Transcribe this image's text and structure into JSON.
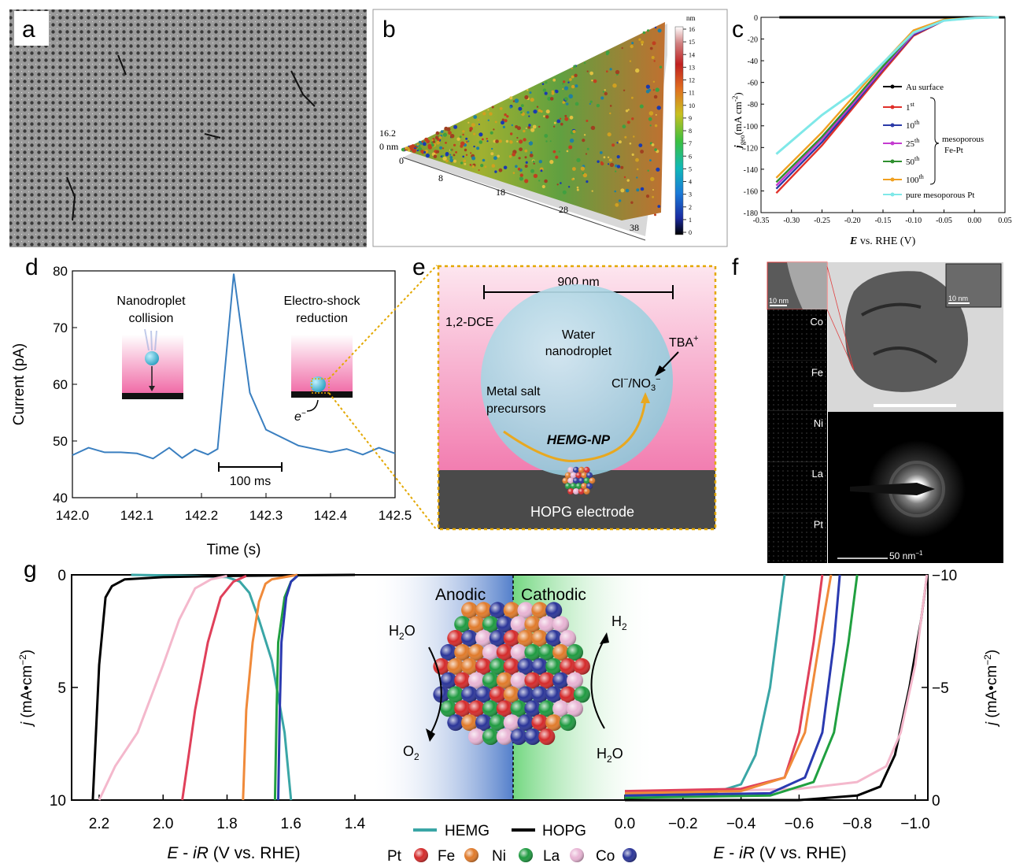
{
  "panels": {
    "a": "a",
    "b": "b",
    "c": "c",
    "d": "d",
    "e": "e",
    "f": "f",
    "g": "g"
  },
  "colors": {
    "au": "#000000",
    "c1": "#e0302a",
    "c10": "#2a3aa8",
    "c25": "#c43bd0",
    "c50": "#2e8f2e",
    "c100": "#f0a020",
    "pt": "#7fe8e8",
    "d_line": "#3a7fc0",
    "hemg": "#3aa6a6",
    "hopg": "#000000",
    "g_pink_light": "#f4b8cc",
    "g_red": "#e0405a",
    "g_orange": "#f08a3a",
    "g_green": "#20a040",
    "g_blue": "#2a3ab0",
    "atom_pt": "#d42a2a",
    "atom_fe": "#e07a2a",
    "atom_ni": "#1e9a40",
    "atom_la": "#e8b4d4",
    "atom_co": "#2a3498"
  },
  "panel_b": {
    "z_unit": "nm",
    "z_ticks": [
      "16",
      "15",
      "14",
      "13",
      "12",
      "11",
      "10",
      "9",
      "8",
      "7",
      "6",
      "5",
      "4",
      "3",
      "2",
      "1",
      "0"
    ],
    "height_top": "16.2",
    "height_zero": "0 nm",
    "axis_ticks": [
      "0",
      "8",
      "18",
      "28",
      "38"
    ]
  },
  "panel_c": {
    "ylabel_main": "j",
    "ylabel_sub": "geo",
    "ylabel_unit": "(mA cm",
    "ylabel_sup": "-2",
    "ylabel_close": ")",
    "xlabel_main": "E",
    "xlabel_rest": " vs. RHE (V)",
    "x_ticks": [
      "-0.35",
      "-0.30",
      "-0.25",
      "-0.20",
      "-0.15",
      "-0.10",
      "-0.05",
      "0.00",
      "0.05"
    ],
    "y_ticks": [
      "0",
      "-20",
      "-40",
      "-60",
      "-80",
      "-100",
      "-120",
      "-140",
      "-160",
      "-180"
    ],
    "legend": {
      "au": "Au surface",
      "s1": "1",
      "s1sup": "st",
      "s10": "10",
      "s10sup": "th",
      "s25": "25",
      "s25sup": "th",
      "s50": "50",
      "s50sup": "th",
      "s100": "100",
      "s100sup": "th",
      "group1": "mesoporous",
      "group2": "Fe-Pt",
      "pt": "pure mesoporous Pt"
    }
  },
  "panel_d": {
    "ylabel": "Current (pA)",
    "xlabel": "Time (s)",
    "x_ticks": [
      "142.0",
      "142.1",
      "142.2",
      "142.3",
      "142.4",
      "142.5"
    ],
    "y_ticks": [
      "80",
      "70",
      "60",
      "50",
      "40"
    ],
    "scalebar": "100 ms",
    "label1a": "Nanodroplet",
    "label1b": "collision",
    "label2a": "Electro-shock",
    "label2b": "reduction",
    "electron": "e",
    "electron_sup": "−"
  },
  "panel_e": {
    "scale": "900 nm",
    "solvent": "1,2-DCE",
    "droplet1": "Water",
    "droplet2": "nanodroplet",
    "tba": "TBA",
    "tba_sup": "+",
    "ions": "Cl",
    "ions_sup": "−",
    "ions2": "/NO",
    "ions2_sub": "3",
    "ions2_sup": "−",
    "precursor1": "Metal salt",
    "precursor2": "precursors",
    "np": "HEMG-NP",
    "electrode": "HOPG electrode"
  },
  "panel_f": {
    "inset_scale1": "10 nm",
    "inset_scale2": "10 nm",
    "elements": [
      "Co",
      "Fe",
      "Ni",
      "La",
      "Pt"
    ],
    "saed_scale": "50 nm",
    "saed_sup": "−1"
  },
  "panel_g": {
    "left_ylabel_j": "j",
    "left_ylabel_rest": " (mA•cm",
    "left_ylabel_sup": "−2",
    "left_ylabel_close": ")",
    "left_y_ticks": [
      "0",
      "5",
      "10"
    ],
    "right_y_ticks": [
      "−10",
      "−5",
      "0"
    ],
    "left_x_ticks": [
      "2.2",
      "2.0",
      "1.8",
      "1.6",
      "1.4"
    ],
    "right_x_ticks": [
      "0.0",
      "−0.2",
      "−0.4",
      "−0.6",
      "−0.8",
      "−1.0"
    ],
    "left_xlabel_e": "E",
    "left_xlabel_rest": " - ",
    "left_xlabel_ir": "iR",
    "left_xlabel_end": " (V vs. RHE)",
    "anodic": "Anodic",
    "cathodic": "Cathodic",
    "h2o_left": "H",
    "h2o_left_sub": "2",
    "h2o_left_o": "O",
    "o2": "O",
    "o2_sub": "2",
    "h2": "H",
    "h2_sub": "2",
    "h2o_right": "H",
    "h2o_right_sub": "2",
    "h2o_right_o": "O",
    "legend_hemg": "HEMG",
    "legend_hopg": "HOPG",
    "atoms": [
      "Pt",
      "Fe",
      "Ni",
      "La",
      "Co"
    ]
  },
  "chart_data": [
    {
      "panel": "c",
      "type": "line",
      "xlabel": "E vs. RHE (V)",
      "ylabel": "j_geo (mA cm^-2)",
      "xlim": [
        -0.35,
        0.05
      ],
      "ylim": [
        -180,
        0
      ],
      "series": [
        {
          "name": "Au surface",
          "x": [
            -0.32,
            0.05
          ],
          "y": [
            0,
            0
          ]
        },
        {
          "name": "1st",
          "x": [
            -0.325,
            -0.25,
            -0.2,
            -0.15,
            -0.1,
            -0.05,
            0.0,
            0.04
          ],
          "y": [
            -162,
            -118,
            -84,
            -50,
            -17,
            -3,
            -0.5,
            0
          ]
        },
        {
          "name": "10th",
          "x": [
            -0.325,
            -0.25,
            -0.2,
            -0.15,
            -0.1,
            -0.05,
            0.0,
            0.04
          ],
          "y": [
            -158,
            -115,
            -82,
            -48,
            -16,
            -3,
            -0.5,
            0
          ]
        },
        {
          "name": "25th",
          "x": [
            -0.325,
            -0.25,
            -0.2,
            -0.15,
            -0.1,
            -0.05,
            0.0,
            0.04
          ],
          "y": [
            -155,
            -112,
            -80,
            -47,
            -15,
            -3,
            -0.5,
            0
          ]
        },
        {
          "name": "50th",
          "x": [
            -0.325,
            -0.25,
            -0.2,
            -0.15,
            -0.1,
            -0.05,
            0.0,
            0.04
          ],
          "y": [
            -152,
            -110,
            -78,
            -45,
            -14,
            -3,
            -0.5,
            0
          ]
        },
        {
          "name": "100th",
          "x": [
            -0.325,
            -0.25,
            -0.2,
            -0.15,
            -0.1,
            -0.05,
            0.0,
            0.04
          ],
          "y": [
            -148,
            -106,
            -74,
            -42,
            -12,
            -2,
            -0.5,
            0
          ]
        },
        {
          "name": "pure mesoporous Pt",
          "x": [
            -0.325,
            -0.25,
            -0.2,
            -0.15,
            -0.1,
            -0.05,
            0.0,
            0.04
          ],
          "y": [
            -126,
            -90,
            -70,
            -42,
            -14,
            -3,
            -0.5,
            0
          ]
        }
      ]
    },
    {
      "panel": "d",
      "type": "line",
      "xlabel": "Time (s)",
      "ylabel": "Current (pA)",
      "xlim": [
        142.0,
        142.5
      ],
      "ylim": [
        40,
        80
      ],
      "series": [
        {
          "x": [
            142.0,
            142.025,
            142.05,
            142.075,
            142.1,
            142.125,
            142.15,
            142.17,
            142.19,
            142.21,
            142.225,
            142.25,
            142.275,
            142.3,
            142.35,
            142.4,
            142.425,
            142.45,
            142.475,
            142.5
          ],
          "y": [
            47.5,
            48.8,
            48.0,
            48.0,
            47.8,
            46.9,
            48.8,
            47.0,
            48.5,
            47.6,
            48.6,
            79.5,
            58.5,
            52.0,
            49.2,
            48.0,
            48.6,
            47.6,
            48.8,
            47.8
          ]
        }
      ]
    },
    {
      "panel": "g-anodic",
      "type": "line",
      "xlabel": "E - iR (V vs. RHE)",
      "ylabel": "j (mA•cm^-2)",
      "xlim": [
        2.3,
        1.1
      ],
      "ylim": [
        0,
        10
      ],
      "series": [
        {
          "name": "HEMG",
          "x": [
            1.6,
            1.62,
            1.66,
            1.7,
            1.73,
            1.76,
            1.8,
            1.9,
            2.0,
            2.1
          ],
          "y": [
            10,
            7,
            3.8,
            2,
            0.8,
            0.3,
            0.1,
            0.05,
            0.02,
            0
          ]
        },
        {
          "name": "HOPG",
          "x": [
            2.22,
            2.2,
            2.18,
            2.16,
            2.12,
            2.0,
            1.8,
            1.6,
            1.4
          ],
          "y": [
            10,
            4,
            1,
            0.5,
            0.2,
            0.1,
            0.05,
            0.02,
            0
          ]
        },
        {
          "x": [
            2.2,
            2.15,
            2.08,
            2.0,
            1.95,
            1.9,
            1.85,
            1.8
          ],
          "y": [
            10,
            8.5,
            7,
            4,
            2,
            0.6,
            0.2,
            0.05
          ]
        },
        {
          "x": [
            1.94,
            1.92,
            1.9,
            1.86,
            1.82,
            1.78,
            1.74
          ],
          "y": [
            10,
            8,
            6,
            3,
            1,
            0.3,
            0.05
          ]
        },
        {
          "x": [
            1.75,
            1.74,
            1.72,
            1.7,
            1.68,
            1.66,
            1.62,
            1.58
          ],
          "y": [
            10,
            6,
            3,
            1.2,
            0.4,
            0.2,
            0.1,
            0
          ]
        },
        {
          "x": [
            1.65,
            1.645,
            1.64,
            1.62,
            1.6,
            1.58
          ],
          "y": [
            10,
            6,
            3,
            1,
            0.3,
            0.05
          ]
        },
        {
          "x": [
            1.64,
            1.635,
            1.63,
            1.615,
            1.6,
            1.58
          ],
          "y": [
            10,
            6,
            3,
            1,
            0.3,
            0.05
          ]
        }
      ]
    },
    {
      "panel": "g-cathodic",
      "type": "line",
      "xlabel": "E - iR (V vs. RHE)",
      "ylabel": "j (mA•cm^-2)",
      "xlim": [
        0.0,
        -1.05
      ],
      "ylim": [
        0,
        -10
      ],
      "series": [
        {
          "name": "HEMG",
          "x": [
            0.0,
            -0.3,
            -0.4,
            -0.45,
            -0.5,
            -0.53,
            -0.55
          ],
          "y": [
            -0.2,
            -0.3,
            -0.7,
            -2,
            -5,
            -8,
            -10
          ]
        },
        {
          "name": "HOPG",
          "x": [
            0.0,
            -0.6,
            -0.8,
            -0.88,
            -0.93,
            -0.98,
            -1.02,
            -1.05
          ],
          "y": [
            0,
            0,
            -0.2,
            -0.6,
            -2,
            -5,
            -8,
            -10
          ]
        },
        {
          "x": [
            0.0,
            -0.6,
            -0.8,
            -0.9,
            -0.95,
            -1.0,
            -1.04
          ],
          "y": [
            -0.3,
            -0.5,
            -0.8,
            -1.5,
            -3,
            -6,
            -10
          ]
        },
        {
          "x": [
            0.0,
            -0.4,
            -0.55,
            -0.6,
            -0.65,
            -0.68
          ],
          "y": [
            -0.4,
            -0.5,
            -1,
            -3,
            -7,
            -10
          ]
        },
        {
          "x": [
            0.0,
            -0.4,
            -0.55,
            -0.62,
            -0.67,
            -0.71
          ],
          "y": [
            -0.3,
            -0.4,
            -1,
            -3,
            -7,
            -10
          ]
        },
        {
          "x": [
            0.0,
            -0.5,
            -0.65,
            -0.72,
            -0.77,
            -0.8
          ],
          "y": [
            -0.1,
            -0.2,
            -0.8,
            -3,
            -7,
            -10
          ]
        },
        {
          "x": [
            0.0,
            -0.5,
            -0.62,
            -0.68,
            -0.72,
            -0.74
          ],
          "y": [
            -0.2,
            -0.3,
            -1,
            -3,
            -7,
            -10
          ]
        }
      ]
    }
  ]
}
